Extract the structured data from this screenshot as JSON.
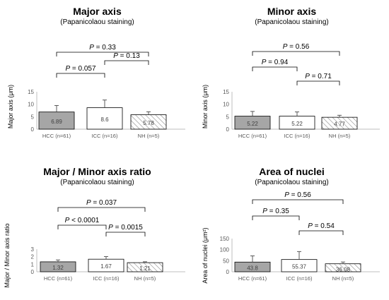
{
  "chart_data": [
    {
      "type": "bar",
      "title": "Major axis",
      "subtitle": "(Papanicolaou staining)",
      "ylabel": "Major axis (μm)",
      "categories": [
        "HCC (n=61)",
        "ICC (n=16)",
        "NH (n=5)"
      ],
      "values": [
        6.89,
        8.6,
        5.78
      ],
      "value_labels": [
        "6.89",
        "8.6",
        "5.78"
      ],
      "errors": [
        2.6,
        3.1,
        1.2
      ],
      "bar_styles": [
        "gray",
        "white",
        "hatched"
      ],
      "ylim": [
        0,
        15
      ],
      "yticks": [
        0,
        5,
        10,
        15
      ],
      "comparisons": [
        {
          "from": 0,
          "to": 1,
          "label": "P = 0.057"
        },
        {
          "from": 1,
          "to": 2,
          "label": "P = 0.13"
        },
        {
          "from": 0,
          "to": 2,
          "label": "P = 0.33"
        }
      ]
    },
    {
      "type": "bar",
      "title": "Minor axis",
      "subtitle": "(Papanicolaou staining)",
      "ylabel": "Minor axis (μm)",
      "categories": [
        "HCC (n=61)",
        "ICC (n=16)",
        "NH (n=5)"
      ],
      "values": [
        5.22,
        5.22,
        4.77
      ],
      "value_labels": [
        "5.22",
        "5.22",
        "4.77"
      ],
      "errors": [
        1.9,
        1.7,
        0.8
      ],
      "bar_styles": [
        "gray",
        "white",
        "hatched"
      ],
      "ylim": [
        0,
        15
      ],
      "yticks": [
        0,
        5,
        10,
        15
      ],
      "comparisons": [
        {
          "from": 0,
          "to": 1,
          "label": "P = 0.94"
        },
        {
          "from": 1,
          "to": 2,
          "label": "P = 0.71"
        },
        {
          "from": 0,
          "to": 2,
          "label": "P = 0.56"
        }
      ]
    },
    {
      "type": "bar",
      "title": "Major / Minor axis ratio",
      "subtitle": "(Papanicolaou staining)",
      "ylabel": "Major / Minor axis ratio",
      "categories": [
        "HCC (n=61)",
        "ICC (n=16)",
        "NH (n=5)"
      ],
      "values": [
        1.32,
        1.67,
        1.21
      ],
      "value_labels": [
        "1.32",
        "1.67",
        "1.21"
      ],
      "errors": [
        0.25,
        0.35,
        0.12
      ],
      "bar_styles": [
        "gray",
        "white",
        "hatched"
      ],
      "ylim": [
        0,
        3
      ],
      "yticks": [
        0,
        1,
        2,
        3
      ],
      "comparisons": [
        {
          "from": 0,
          "to": 1,
          "label": "P < 0.0001"
        },
        {
          "from": 1,
          "to": 2,
          "label": "P = 0.0015"
        },
        {
          "from": 0,
          "to": 2,
          "label": "P = 0.037"
        }
      ]
    },
    {
      "type": "bar",
      "title": "Area of nuclei",
      "subtitle": "(Papanicolaou staining)",
      "ylabel": "Area of nuclei (μm²)",
      "categories": [
        "HCC (n=61)",
        "ICC (n=16)",
        "NH (n=5)"
      ],
      "values": [
        43.8,
        55.37,
        36.08
      ],
      "value_labels": [
        "43.8",
        "55.37",
        "36.08"
      ],
      "errors": [
        28,
        36,
        8
      ],
      "bar_styles": [
        "gray",
        "white",
        "hatched"
      ],
      "ylim": [
        0,
        150
      ],
      "yticks": [
        0,
        50,
        100,
        150
      ],
      "comparisons": [
        {
          "from": 0,
          "to": 1,
          "label": "P = 0.35"
        },
        {
          "from": 1,
          "to": 2,
          "label": "P = 0.54"
        },
        {
          "from": 0,
          "to": 2,
          "label": "P = 0.56"
        }
      ]
    }
  ],
  "colors": {
    "gray_bar": "#a6a6a6",
    "white_bar": "#ffffff",
    "hatch": "#8c8c8c",
    "axis": "#bfbfbf",
    "tick_text": "#595959",
    "bracket": "#000000"
  }
}
